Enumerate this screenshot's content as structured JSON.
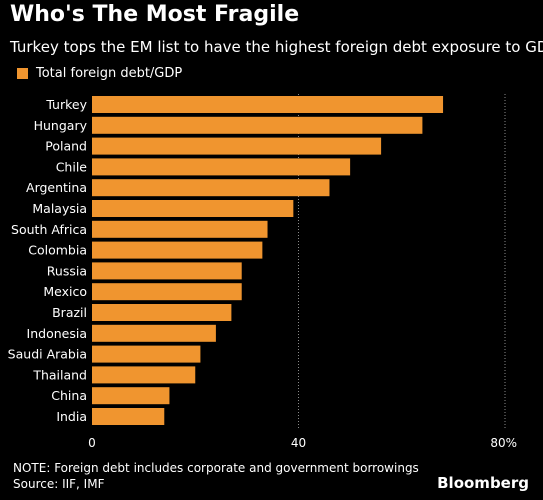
{
  "header": {
    "title": "Who's The Most Fragile",
    "subtitle": "Turkey tops the EM list to have the highest foreign debt exposure to GDP"
  },
  "legend": {
    "label": "Total foreign debt/GDP"
  },
  "footer": {
    "note": "NOTE: Foreign debt includes corporate and government borrowings",
    "source": "Source: IIF, IMF",
    "brand": "Bloomberg"
  },
  "colors": {
    "bar": "#F0952F",
    "background": "#000000",
    "grid": "#8a8a8a"
  },
  "chart_data": {
    "type": "bar",
    "orientation": "horizontal",
    "title": "Who's The Most Fragile",
    "subtitle": "Turkey tops the EM list to have the highest foreign debt exposure to GDP",
    "categories": [
      "Turkey",
      "Hungary",
      "Poland",
      "Chile",
      "Argentina",
      "Malaysia",
      "South Africa",
      "Colombia",
      "Russia",
      "Mexico",
      "Brazil",
      "Indonesia",
      "Saudi Arabia",
      "Thailand",
      "China",
      "India"
    ],
    "series": [
      {
        "name": "Total foreign debt/GDP",
        "values": [
          68,
          64,
          56,
          50,
          46,
          39,
          34,
          33,
          29,
          29,
          27,
          24,
          21,
          20,
          15,
          14
        ]
      }
    ],
    "xlim": [
      0,
      80
    ],
    "xticks": [
      0,
      40,
      80
    ],
    "xtick_labels": [
      "0",
      "40",
      "80%"
    ],
    "grid": true,
    "legend_position": "top-left"
  }
}
